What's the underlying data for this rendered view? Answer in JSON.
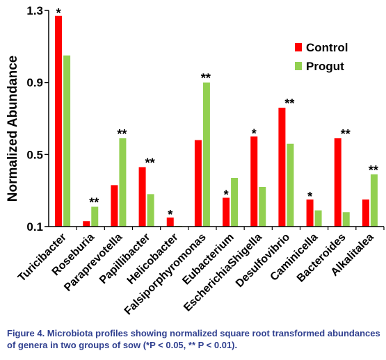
{
  "chart_data": {
    "type": "bar",
    "ylabel": "Normalized Abundance",
    "xlabel": "",
    "ylim": [
      0.1,
      1.3
    ],
    "yticks": [
      "1.3",
      "0.9",
      "0.5",
      "0.1"
    ],
    "ytick_values": [
      1.3,
      0.9,
      0.5,
      0.1
    ],
    "categories": [
      "Turicibacter",
      "Roseburia",
      "Paraprevotella",
      "Papillibacter",
      "Helicobacter",
      "Falsiporphyromonas",
      "Eubacterium",
      "EscherichiaShigella",
      "Desulfovibrio",
      "Caminicella",
      "Bacteroides",
      "Alkalitalea"
    ],
    "series": [
      {
        "name": "Control",
        "color": "#ff0000",
        "values": [
          1.27,
          0.13,
          0.33,
          0.43,
          0.15,
          0.58,
          0.26,
          0.6,
          0.76,
          0.25,
          0.59,
          0.25
        ]
      },
      {
        "name": "Progut",
        "color": "#92d050",
        "values": [
          1.05,
          0.21,
          0.59,
          0.28,
          0.1,
          0.9,
          0.37,
          0.32,
          0.56,
          0.19,
          0.18,
          0.39
        ]
      }
    ],
    "significance": [
      "*",
      "**",
      "**",
      "**",
      "*",
      "**",
      "*",
      "*",
      "**",
      "*",
      "**",
      "**"
    ],
    "legend_position": "top-right",
    "grid": false
  },
  "caption": "Figure 4. Microbiota profiles showing normalized square root transformed abundances of genera in two groups of sow (*P < 0.05, ** P < 0.01)."
}
